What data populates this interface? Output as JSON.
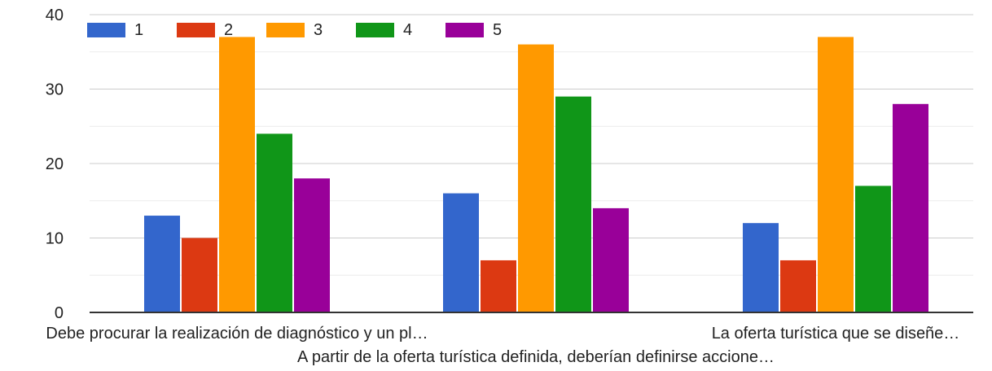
{
  "chart_data": {
    "type": "bar",
    "categories": [
      "Debe procurar la realización de diagnóstico y un pl…",
      "A partir de la oferta turística definida, deberían definirse accione…",
      "La oferta turística que se diseñe…"
    ],
    "series": [
      {
        "name": "1",
        "color": "#3366cc",
        "values": [
          13,
          16,
          12
        ]
      },
      {
        "name": "2",
        "color": "#dc3912",
        "values": [
          10,
          7,
          7
        ]
      },
      {
        "name": "3",
        "color": "#ff9900",
        "values": [
          37,
          36,
          37
        ]
      },
      {
        "name": "4",
        "color": "#109618",
        "values": [
          24,
          29,
          17
        ]
      },
      {
        "name": "5",
        "color": "#990099",
        "values": [
          18,
          14,
          28
        ]
      }
    ],
    "yticks": [
      "0",
      "10",
      "20",
      "30",
      "40"
    ],
    "ylim": [
      0,
      40
    ],
    "grid": true,
    "legend_position": "top-left",
    "title": "",
    "xlabel": "",
    "ylabel": ""
  }
}
